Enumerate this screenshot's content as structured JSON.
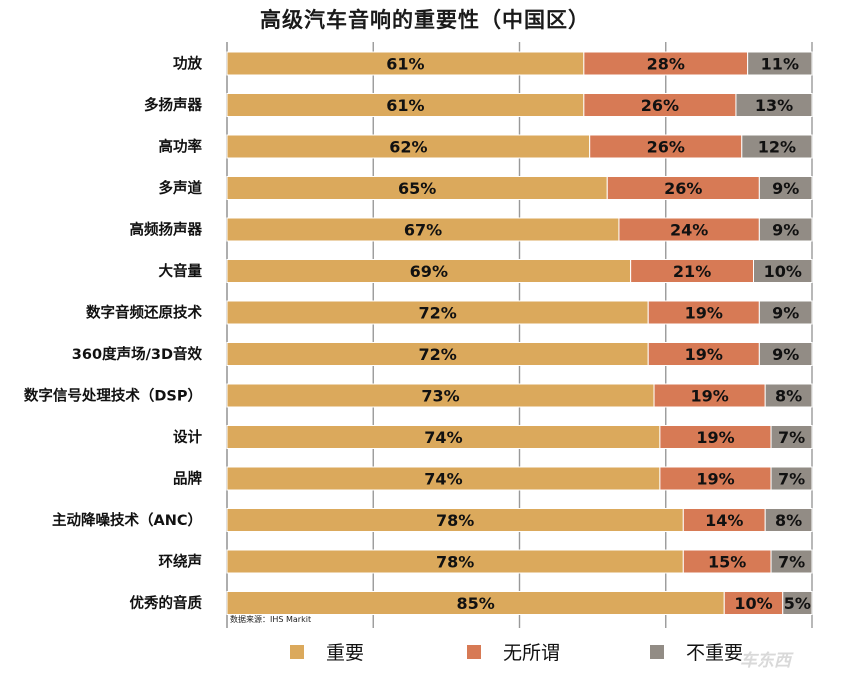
{
  "title": "高级汽车音响的重要性（中国区）",
  "source_note": "数据来源：IHS Markit",
  "watermark": "车东西",
  "colors": {
    "important": "#dba95c",
    "indifferent": "#d77a55",
    "not_important": "#928c85",
    "grid": "#999999"
  },
  "legend": [
    {
      "name": "重要",
      "color_key": "important"
    },
    {
      "name": "无所谓",
      "color_key": "indifferent"
    },
    {
      "name": "不重要",
      "color_key": "not_important"
    }
  ],
  "chart_data": {
    "type": "bar",
    "orientation": "horizontal",
    "stacked": true,
    "title": "高级汽车音响的重要性（中国区）",
    "xlim": [
      0,
      100
    ],
    "unit": "%",
    "categories": [
      "功放",
      "多扬声器",
      "高功率",
      "多声道",
      "高频扬声器",
      "大音量",
      "数字音频还原技术",
      "360度声场/3D音效",
      "数字信号处理技术（DSP）",
      "设计",
      "品牌",
      "主动降噪技术（ANC）",
      "环绕声",
      "优秀的音质"
    ],
    "series": [
      {
        "name": "重要",
        "values": [
          61,
          61,
          62,
          65,
          67,
          69,
          72,
          72,
          73,
          74,
          74,
          78,
          78,
          85
        ]
      },
      {
        "name": "无所谓",
        "values": [
          28,
          26,
          26,
          26,
          24,
          21,
          19,
          19,
          19,
          19,
          19,
          14,
          15,
          10
        ]
      },
      {
        "name": "不重要",
        "values": [
          11,
          13,
          12,
          9,
          9,
          10,
          9,
          9,
          8,
          7,
          7,
          8,
          7,
          5
        ]
      }
    ],
    "legend_position": "bottom",
    "source": "数据来源：IHS Markit"
  }
}
